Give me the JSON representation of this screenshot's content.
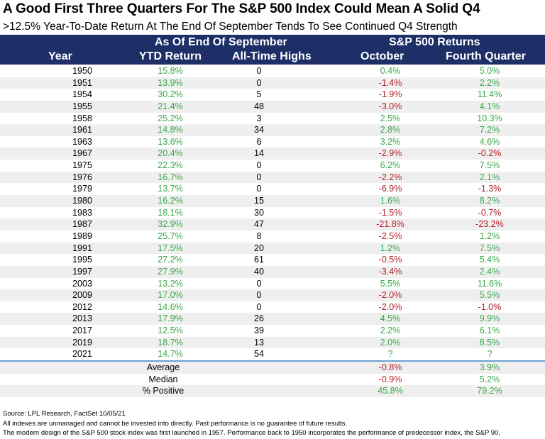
{
  "title": "A Good First Three Quarters For The S&P 500 Index Could Mean A Solid Q4",
  "subtitle": ">12.5% Year-To-Date Return At The End Of September Tends To See Continued Q4 Strength",
  "header": {
    "group_left": "As Of End Of September",
    "group_right": "S&P 500 Returns",
    "col_year": "Year",
    "col_ytd": "YTD Return",
    "col_ath": "All-Time Highs",
    "col_oct": "October",
    "col_q4": "Fourth Quarter"
  },
  "colors": {
    "header_bg": "#1d2f66",
    "positive": "#3aa84a",
    "negative": "#b3202a",
    "separator": "#6ba3d6"
  },
  "chart_data": {
    "type": "table",
    "columns": [
      "Year",
      "YTD Return",
      "All-Time Highs",
      "October",
      "Fourth Quarter"
    ],
    "rows": [
      [
        "1950",
        "15.8%",
        "0",
        "0.4%",
        "5.0%"
      ],
      [
        "1951",
        "13.9%",
        "0",
        "-1.4%",
        "2.2%"
      ],
      [
        "1954",
        "30.2%",
        "5",
        "-1.9%",
        "11.4%"
      ],
      [
        "1955",
        "21.4%",
        "48",
        "-3.0%",
        "4.1%"
      ],
      [
        "1958",
        "25.2%",
        "3",
        "2.5%",
        "10.3%"
      ],
      [
        "1961",
        "14.8%",
        "34",
        "2.8%",
        "7.2%"
      ],
      [
        "1963",
        "13.6%",
        "6",
        "3.2%",
        "4.6%"
      ],
      [
        "1967",
        "20.4%",
        "14",
        "-2.9%",
        "-0.2%"
      ],
      [
        "1975",
        "22.3%",
        "0",
        "6.2%",
        "7.5%"
      ],
      [
        "1976",
        "16.7%",
        "0",
        "-2.2%",
        "2.1%"
      ],
      [
        "1979",
        "13.7%",
        "0",
        "-6.9%",
        "-1.3%"
      ],
      [
        "1980",
        "16.2%",
        "15",
        "1.6%",
        "8.2%"
      ],
      [
        "1983",
        "18.1%",
        "30",
        "-1.5%",
        "-0.7%"
      ],
      [
        "1987",
        "32.9%",
        "47",
        "-21.8%",
        "-23.2%"
      ],
      [
        "1989",
        "25.7%",
        "8",
        "-2.5%",
        "1.2%"
      ],
      [
        "1991",
        "17.5%",
        "20",
        "1.2%",
        "7.5%"
      ],
      [
        "1995",
        "27.2%",
        "61",
        "-0.5%",
        "5.4%"
      ],
      [
        "1997",
        "27.9%",
        "40",
        "-3.4%",
        "2.4%"
      ],
      [
        "2003",
        "13.2%",
        "0",
        "5.5%",
        "11.6%"
      ],
      [
        "2009",
        "17.0%",
        "0",
        "-2.0%",
        "5.5%"
      ],
      [
        "2012",
        "14.6%",
        "0",
        "-2.0%",
        "-1.0%"
      ],
      [
        "2013",
        "17.9%",
        "26",
        "4.5%",
        "9.9%"
      ],
      [
        "2017",
        "12.5%",
        "39",
        "2.2%",
        "6.1%"
      ],
      [
        "2019",
        "18.7%",
        "13",
        "2.0%",
        "8.5%"
      ],
      [
        "2021",
        "14.7%",
        "54",
        "?",
        "?"
      ]
    ],
    "summary": [
      [
        "Average",
        "-0.8%",
        "3.9%"
      ],
      [
        "Median",
        "-0.9%",
        "5.2%"
      ],
      [
        "% Positive",
        "45.8%",
        "79.2%"
      ]
    ]
  },
  "footer": {
    "source": "Source: LPL Research, FactSet 10/05/21",
    "disclaimer": "All indexes are unmanaged and cannot be invested into directly. Past performance is no guarantee of future results.",
    "note": "The modern design of the S&P 500 stock index was first launched in 1957. Performance back to 1950 incorporates the performance of predecessor index, the S&P 90."
  }
}
